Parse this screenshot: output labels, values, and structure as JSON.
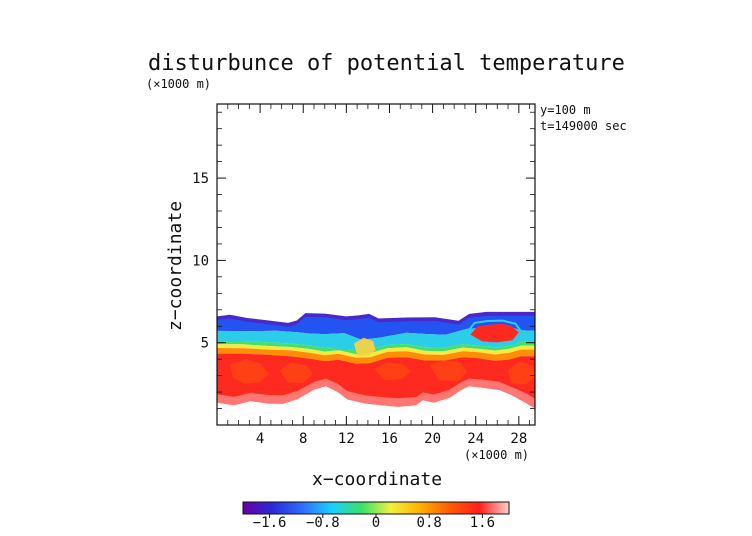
{
  "chart_data": {
    "type": "heatmap",
    "title": "disturbunce of potential temperature",
    "unit_label": "(×1000 m)",
    "xlabel": "x−coordinate",
    "ylabel": "z−coordinate",
    "x_unit_label": "(×1000 m)",
    "info_lines": [
      "y=100  m",
      "t=149000 sec"
    ],
    "xlim": [
      0,
      29.5
    ],
    "ylim": [
      0,
      19.5
    ],
    "x_ticks": [
      4,
      8,
      12,
      16,
      20,
      24,
      28
    ],
    "x_tick_labels": [
      "4",
      "8",
      "12",
      "16",
      "20",
      "24",
      "28"
    ],
    "y_ticks": [
      5,
      10,
      15
    ],
    "y_tick_labels": [
      "5",
      "10",
      "15"
    ],
    "field_extent_z": [
      1.0,
      6.8
    ],
    "colorbar": {
      "range": [
        -2.0,
        2.0
      ],
      "ticks": [
        -1.6,
        -0.8,
        0,
        0.8,
        1.6
      ],
      "tick_labels": [
        "−1.6",
        "−0.8",
        "0",
        "0.8",
        "1.6"
      ],
      "colors": [
        "#6a00a8",
        "#2a2ad8",
        "#2f6cff",
        "#18d0ff",
        "#39e16b",
        "#f1f13d",
        "#ffb000",
        "#ff5a00",
        "#ff1f1f",
        "#ffd0d0"
      ]
    }
  }
}
